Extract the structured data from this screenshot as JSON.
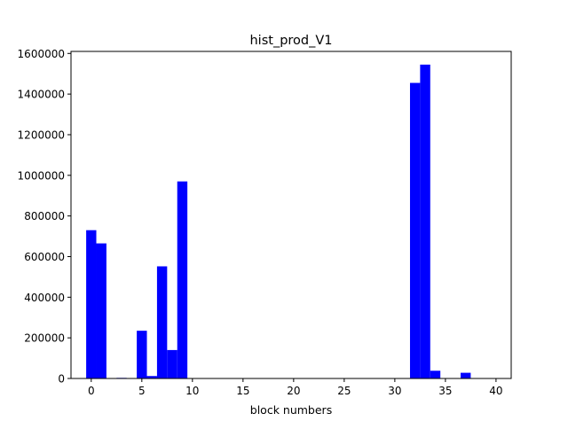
{
  "chart_data": {
    "type": "bar",
    "title": "hist_prod_V1",
    "xlabel": "block numbers",
    "ylabel": "",
    "x_ticks": [
      "0",
      "5",
      "10",
      "15",
      "20",
      "25",
      "30",
      "35",
      "40"
    ],
    "y_ticks": [
      "0",
      "200000",
      "400000",
      "600000",
      "800000",
      "1000000",
      "1200000",
      "1400000",
      "1600000"
    ],
    "xlim": [
      -2,
      41.5
    ],
    "ylim": [
      0,
      1610000
    ],
    "bar_width": 1,
    "bar_color": "#0000ff",
    "grid": false,
    "legend": "none",
    "x": [
      0,
      1,
      2,
      3,
      4,
      5,
      6,
      7,
      8,
      9,
      32,
      33,
      34,
      37
    ],
    "values": [
      730000,
      665000,
      0,
      3000,
      0,
      235000,
      12000,
      552000,
      140000,
      970000,
      1455000,
      1545000,
      38000,
      28000
    ]
  }
}
